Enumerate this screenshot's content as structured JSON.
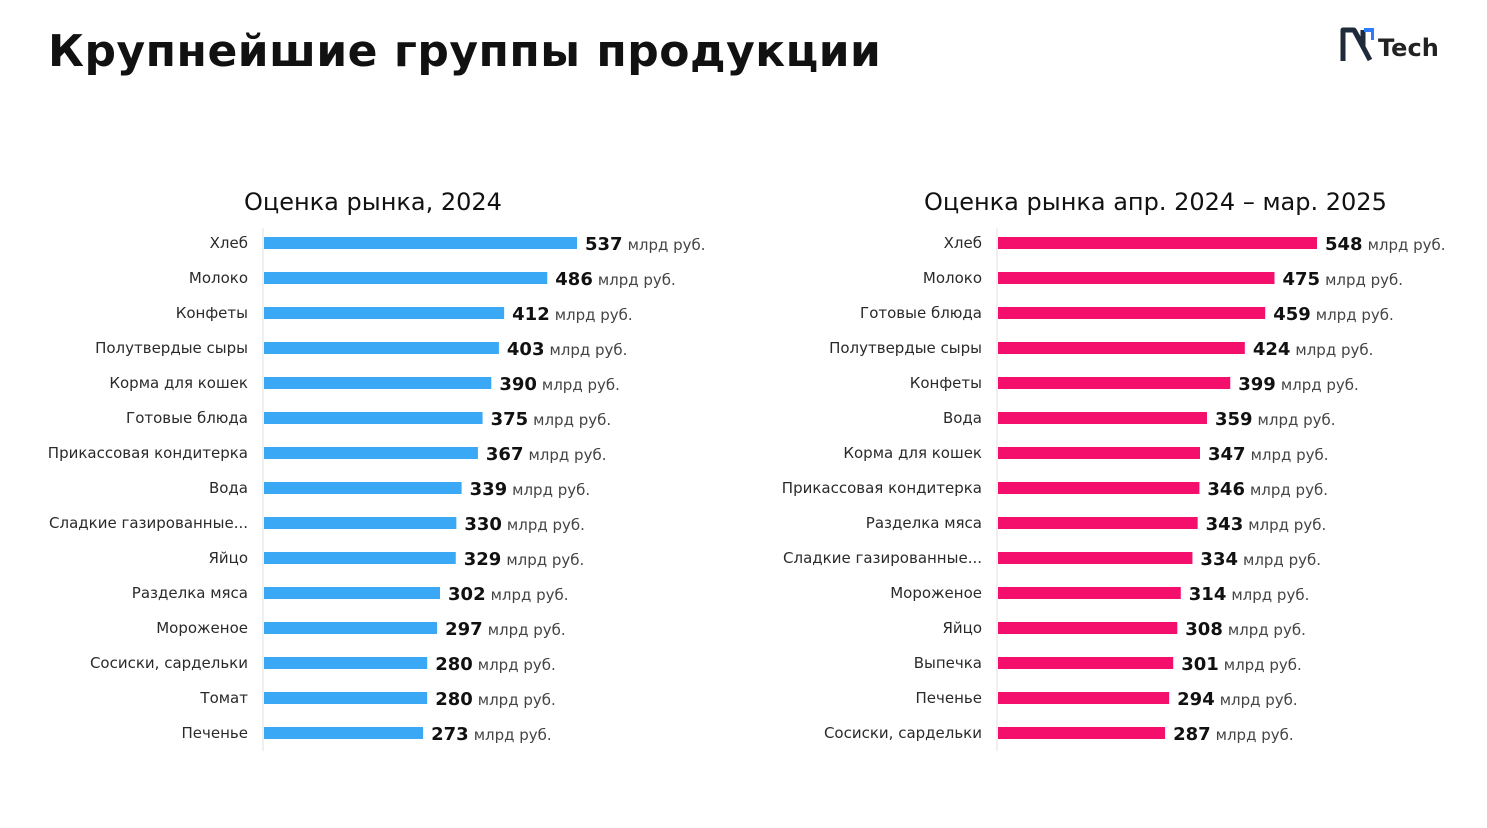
{
  "page": {
    "title": "Крупнейшие группы продукции",
    "logo_text": "Tech"
  },
  "chart_data": [
    {
      "type": "bar",
      "orientation": "horizontal",
      "title": "Оценка рынка, 2024",
      "unit": "млрд руб.",
      "color": "#3aa8f5",
      "categories": [
        "Хлеб",
        "Молоко",
        "Конфеты",
        "Полутвердые сыры",
        "Корма для кошек",
        "Готовые блюда",
        "Прикассовая кондитерка",
        "Вода",
        "Сладкие газированные...",
        "Яйцо",
        "Разделка мяса",
        "Мороженое",
        "Сосиски, сардельки",
        "Томат",
        "Печенье"
      ],
      "values": [
        537,
        486,
        412,
        403,
        390,
        375,
        367,
        339,
        330,
        329,
        302,
        297,
        280,
        280,
        273
      ],
      "xlim": [
        0,
        540
      ]
    },
    {
      "type": "bar",
      "orientation": "horizontal",
      "title": "Оценка рынка апр. 2024 – мар. 2025",
      "unit": "млрд руб.",
      "color": "#f50f6d",
      "categories": [
        "Хлеб",
        "Молоко",
        "Готовые блюда",
        "Полутвердые сыры",
        "Конфеты",
        "Вода",
        "Корма для кошек",
        "Прикассовая кондитерка",
        "Разделка мяса",
        "Сладкие газированные...",
        "Мороженое",
        "Яйцо",
        "Выпечка",
        "Печенье",
        "Сосиски, сардельки"
      ],
      "values": [
        548,
        475,
        459,
        424,
        399,
        359,
        347,
        346,
        343,
        334,
        314,
        308,
        301,
        294,
        287
      ],
      "xlim": [
        0,
        550
      ]
    }
  ]
}
